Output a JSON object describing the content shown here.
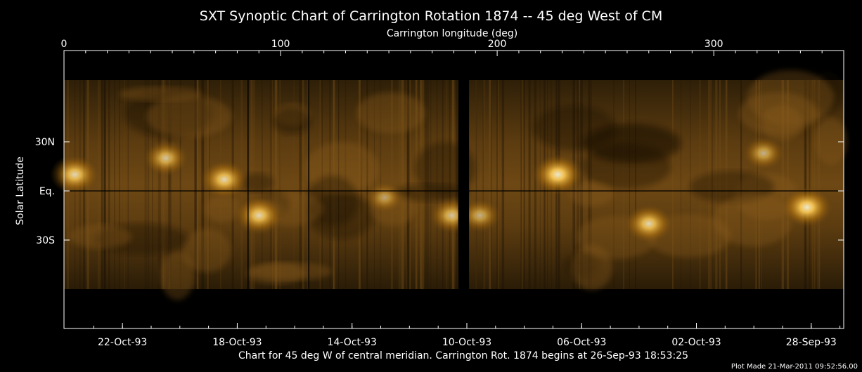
{
  "chart_data": {
    "type": "heatmap",
    "title": "SXT Synoptic Chart of Carrington Rotation 1874 -- 45 deg West of CM",
    "top_axis_label": "Carrington longitude (deg)",
    "ylabel": "Solar Latitude",
    "xlim": [
      0,
      360
    ],
    "top_ticks": [
      0,
      100,
      200,
      300
    ],
    "y_ticks": [
      {
        "label": "30N",
        "lat": 30
      },
      {
        "label": "Eq.",
        "lat": 0
      },
      {
        "label": "30S",
        "lat": -30
      }
    ],
    "date_ticks": [
      {
        "label": "22-Oct-93",
        "lon": 27
      },
      {
        "label": "18-Oct-93",
        "lon": 80
      },
      {
        "label": "14-Oct-93",
        "lon": 133
      },
      {
        "label": "10-Oct-93",
        "lon": 186
      },
      {
        "label": "06-Oct-93",
        "lon": 239
      },
      {
        "label": "02-Oct-93",
        "lon": 292
      },
      {
        "label": "28-Sep-93",
        "lon": 345
      }
    ],
    "colormap": [
      "#000000",
      "#5a3a0c",
      "#b8780f",
      "#ffcc55",
      "#fffbe0"
    ],
    "data_gap_lon": [
      182,
      187
    ],
    "active_regions": [
      {
        "lon": 5,
        "lat": 10,
        "intensity": 0.8
      },
      {
        "lon": 47,
        "lat": 20,
        "intensity": 0.7
      },
      {
        "lon": 74,
        "lat": 7,
        "intensity": 0.8
      },
      {
        "lon": 90,
        "lat": -15,
        "intensity": 0.8
      },
      {
        "lon": 148,
        "lat": -4,
        "intensity": 0.5
      },
      {
        "lon": 179,
        "lat": -15,
        "intensity": 0.7
      },
      {
        "lon": 192,
        "lat": -15,
        "intensity": 0.6
      },
      {
        "lon": 228,
        "lat": 10,
        "intensity": 0.9
      },
      {
        "lon": 270,
        "lat": -20,
        "intensity": 0.8
      },
      {
        "lon": 323,
        "lat": 23,
        "intensity": 0.6
      },
      {
        "lon": 343,
        "lat": -10,
        "intensity": 0.9
      }
    ]
  },
  "footer": {
    "caption": "Chart for 45 deg W of central meridian.  Carrington Rot. 1874 begins at 26-Sep-93 18:53:25",
    "plot_made": "Plot Made 21-Mar-2011 09:52:56.00"
  }
}
